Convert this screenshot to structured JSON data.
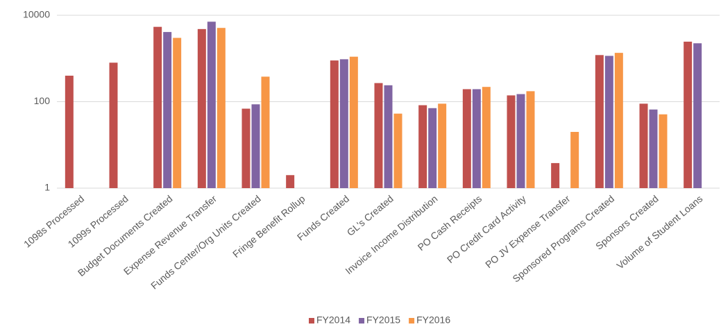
{
  "chart_data": {
    "type": "bar",
    "log_scale": true,
    "grid": true,
    "legend": "bottom",
    "categories": [
      "1098s Processed",
      "1099s Processed",
      "Budget Documents Created",
      "Expense Revenue Transfer",
      "Funds Center/Org Units Created",
      "Fringe Benefit Rollup",
      "Funds Created",
      "GL's Created",
      "Invoice Income Distribution",
      "PO Cash Receipts",
      "PO Credit Card Activity",
      "PO JV Expense Transfer",
      "Sponsored Programs Created",
      "Sponsors Created",
      "Volume of Student Loans"
    ],
    "series": [
      {
        "name": "FY2014",
        "color": "#c0504d",
        "values": [
          400,
          800,
          5400,
          4800,
          69,
          2,
          900,
          270,
          83,
          195,
          140,
          3.8,
          1200,
          90,
          2450
        ]
      },
      {
        "name": "FY2015",
        "color": "#8064a2",
        "values": [
          null,
          null,
          4100,
          7100,
          87,
          null,
          960,
          240,
          71,
          195,
          150,
          null,
          1150,
          66,
          2250
        ]
      },
      {
        "name": "FY2016",
        "color": "#f79646",
        "values": [
          null,
          null,
          3000,
          5100,
          380,
          null,
          1100,
          53,
          90,
          220,
          175,
          20,
          1350,
          51,
          null
        ]
      }
    ],
    "ylim": [
      1,
      10000
    ],
    "yticks": [
      1,
      100,
      10000
    ]
  }
}
